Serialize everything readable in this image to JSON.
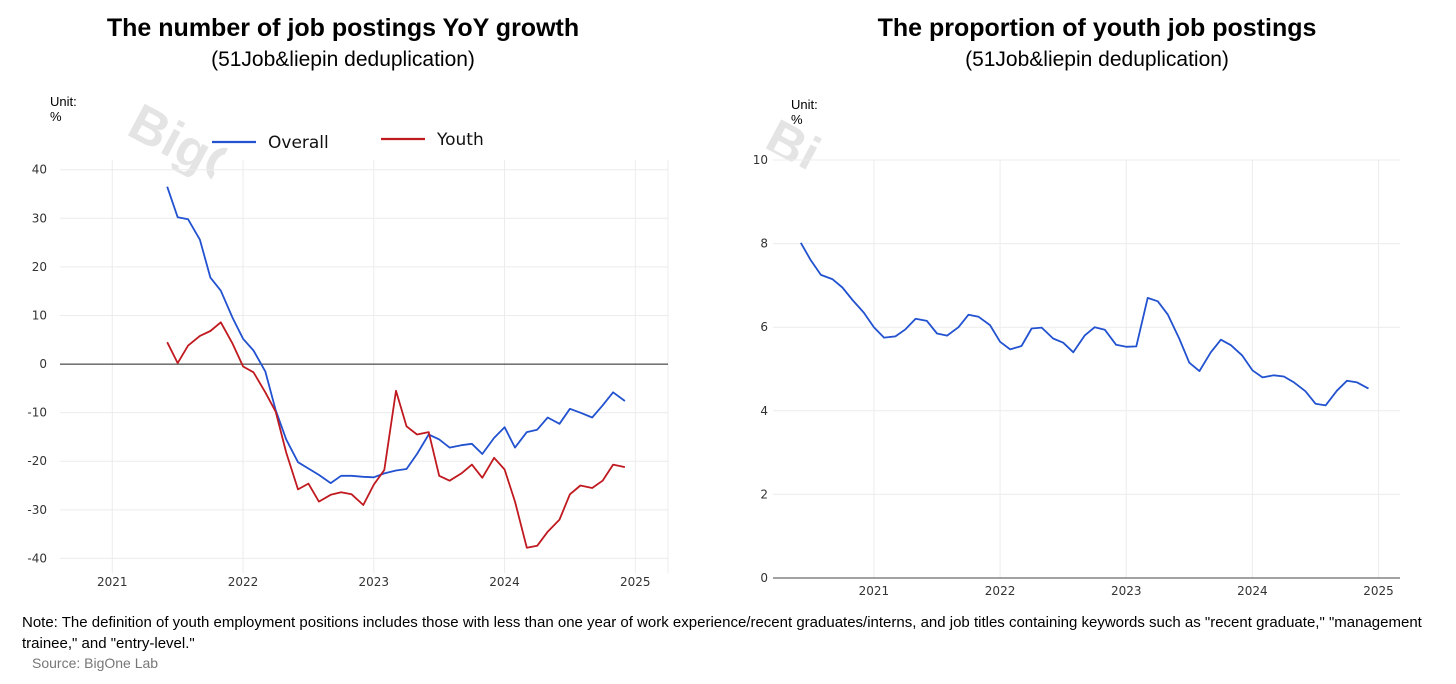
{
  "charts": [
    {
      "title": "The number of job postings YoY growth",
      "subtitle": "(51Job&liepin deduplication)",
      "unit": "Unit: %",
      "watermark": "BigOne"
    },
    {
      "title": "The proportion of youth job postings",
      "subtitle": "(51Job&liepin deduplication)",
      "unit": "Unit: %",
      "watermark": "BigOne"
    }
  ],
  "note": "Note: The definition of youth employment positions includes those with less than one year of work experience/recent graduates/interns, and job titles containing keywords such as \"recent graduate,\" \"management trainee,\" and \"entry-level.\"",
  "source": "Source: BigOne Lab",
  "chart_data": [
    {
      "type": "line",
      "title": "The number of job postings YoY growth",
      "subtitle": "(51Job&liepin deduplication)",
      "unit": "%",
      "xlim": [
        2020.6,
        2025.25
      ],
      "ylim": [
        -43,
        42
      ],
      "xticks": [
        2021,
        2022,
        2023,
        2024,
        2025
      ],
      "yticks": [
        40,
        30,
        20,
        10,
        0,
        -10,
        -20,
        -30,
        -40
      ],
      "grid": true,
      "zero_line": true,
      "legend_position": "top",
      "series": [
        {
          "name": "Overall",
          "color": "#2252d0",
          "points": [
            [
              2021.42,
              36.5
            ],
            [
              2021.5,
              30.2
            ],
            [
              2021.58,
              29.8
            ],
            [
              2021.67,
              25.6
            ],
            [
              2021.75,
              17.8
            ],
            [
              2021.83,
              15.1
            ],
            [
              2021.92,
              9.5
            ],
            [
              2022.0,
              5.2
            ],
            [
              2022.08,
              2.8
            ],
            [
              2022.17,
              -1.5
            ],
            [
              2022.25,
              -9.5
            ],
            [
              2022.33,
              -15.5
            ],
            [
              2022.42,
              -20.2
            ],
            [
              2022.5,
              -21.5
            ],
            [
              2022.58,
              -22.8
            ],
            [
              2022.67,
              -24.5
            ],
            [
              2022.75,
              -23.0
            ],
            [
              2022.83,
              -23.0
            ],
            [
              2022.92,
              -23.2
            ],
            [
              2023.0,
              -23.3
            ],
            [
              2023.08,
              -22.5
            ],
            [
              2023.17,
              -21.9
            ],
            [
              2023.25,
              -21.6
            ],
            [
              2023.33,
              -18.5
            ],
            [
              2023.42,
              -14.5
            ],
            [
              2023.5,
              -15.5
            ],
            [
              2023.58,
              -17.2
            ],
            [
              2023.67,
              -16.7
            ],
            [
              2023.75,
              -16.4
            ],
            [
              2023.83,
              -18.5
            ],
            [
              2023.92,
              -15.2
            ],
            [
              2024.0,
              -13.0
            ],
            [
              2024.08,
              -17.2
            ],
            [
              2024.17,
              -14.0
            ],
            [
              2024.25,
              -13.5
            ],
            [
              2024.33,
              -11.0
            ],
            [
              2024.42,
              -12.3
            ],
            [
              2024.5,
              -9.2
            ],
            [
              2024.58,
              -10.0
            ],
            [
              2024.67,
              -11.0
            ],
            [
              2024.75,
              -8.5
            ],
            [
              2024.83,
              -5.8
            ],
            [
              2024.92,
              -7.6
            ]
          ]
        },
        {
          "name": "Youth",
          "color": "#c0191f",
          "points": [
            [
              2021.42,
              4.5
            ],
            [
              2021.5,
              0.2
            ],
            [
              2021.58,
              3.8
            ],
            [
              2021.67,
              5.8
            ],
            [
              2021.75,
              6.8
            ],
            [
              2021.83,
              8.6
            ],
            [
              2021.92,
              4.2
            ],
            [
              2022.0,
              -0.5
            ],
            [
              2022.08,
              -1.7
            ],
            [
              2022.17,
              -5.8
            ],
            [
              2022.25,
              -9.8
            ],
            [
              2022.33,
              -18.2
            ],
            [
              2022.42,
              -25.8
            ],
            [
              2022.5,
              -24.6
            ],
            [
              2022.58,
              -28.3
            ],
            [
              2022.67,
              -26.9
            ],
            [
              2022.75,
              -26.4
            ],
            [
              2022.83,
              -26.8
            ],
            [
              2022.92,
              -29.0
            ],
            [
              2023.0,
              -24.8
            ],
            [
              2023.08,
              -21.8
            ],
            [
              2023.17,
              -5.5
            ],
            [
              2023.25,
              -12.8
            ],
            [
              2023.33,
              -14.5
            ],
            [
              2023.42,
              -14.0
            ],
            [
              2023.5,
              -23.0
            ],
            [
              2023.58,
              -24.0
            ],
            [
              2023.67,
              -22.5
            ],
            [
              2023.75,
              -20.7
            ],
            [
              2023.83,
              -23.4
            ],
            [
              2023.92,
              -19.3
            ],
            [
              2024.0,
              -21.7
            ],
            [
              2024.08,
              -28.3
            ],
            [
              2024.17,
              -37.8
            ],
            [
              2024.25,
              -37.4
            ],
            [
              2024.33,
              -34.5
            ],
            [
              2024.42,
              -32.0
            ],
            [
              2024.5,
              -26.8
            ],
            [
              2024.58,
              -25.0
            ],
            [
              2024.67,
              -25.5
            ],
            [
              2024.75,
              -24.0
            ],
            [
              2024.83,
              -20.7
            ],
            [
              2024.92,
              -21.2
            ]
          ]
        }
      ]
    },
    {
      "type": "line",
      "title": "The proportion of youth job postings",
      "subtitle": "(51Job&liepin deduplication)",
      "unit": "%",
      "xlim": [
        2020.2,
        2025.17
      ],
      "ylim": [
        0,
        10
      ],
      "xticks": [
        2021,
        2022,
        2023,
        2024,
        2025
      ],
      "yticks": [
        0,
        2,
        4,
        6,
        8,
        10
      ],
      "grid": true,
      "series": [
        {
          "color": "#2252d0",
          "points": [
            [
              2020.42,
              8.02
            ],
            [
              2020.5,
              7.6
            ],
            [
              2020.58,
              7.25
            ],
            [
              2020.67,
              7.15
            ],
            [
              2020.75,
              6.95
            ],
            [
              2020.83,
              6.65
            ],
            [
              2020.92,
              6.35
            ],
            [
              2021.0,
              6.0
            ],
            [
              2021.08,
              5.75
            ],
            [
              2021.17,
              5.78
            ],
            [
              2021.25,
              5.95
            ],
            [
              2021.33,
              6.2
            ],
            [
              2021.42,
              6.15
            ],
            [
              2021.5,
              5.85
            ],
            [
              2021.58,
              5.8
            ],
            [
              2021.67,
              6.0
            ],
            [
              2021.75,
              6.3
            ],
            [
              2021.83,
              6.25
            ],
            [
              2021.92,
              6.05
            ],
            [
              2022.0,
              5.65
            ],
            [
              2022.08,
              5.47
            ],
            [
              2022.17,
              5.55
            ],
            [
              2022.25,
              5.97
            ],
            [
              2022.33,
              5.99
            ],
            [
              2022.42,
              5.73
            ],
            [
              2022.5,
              5.63
            ],
            [
              2022.58,
              5.4
            ],
            [
              2022.67,
              5.8
            ],
            [
              2022.75,
              6.0
            ],
            [
              2022.83,
              5.94
            ],
            [
              2022.92,
              5.58
            ],
            [
              2023.0,
              5.53
            ],
            [
              2023.08,
              5.54
            ],
            [
              2023.17,
              6.7
            ],
            [
              2023.25,
              6.62
            ],
            [
              2023.33,
              6.3
            ],
            [
              2023.42,
              5.73
            ],
            [
              2023.5,
              5.15
            ],
            [
              2023.58,
              4.95
            ],
            [
              2023.67,
              5.4
            ],
            [
              2023.75,
              5.7
            ],
            [
              2023.83,
              5.57
            ],
            [
              2023.92,
              5.32
            ],
            [
              2024.0,
              4.97
            ],
            [
              2024.08,
              4.8
            ],
            [
              2024.17,
              4.85
            ],
            [
              2024.25,
              4.82
            ],
            [
              2024.33,
              4.68
            ],
            [
              2024.42,
              4.47
            ],
            [
              2024.5,
              4.17
            ],
            [
              2024.58,
              4.13
            ],
            [
              2024.67,
              4.48
            ],
            [
              2024.75,
              4.72
            ],
            [
              2024.83,
              4.68
            ],
            [
              2024.92,
              4.53
            ]
          ]
        }
      ]
    }
  ]
}
